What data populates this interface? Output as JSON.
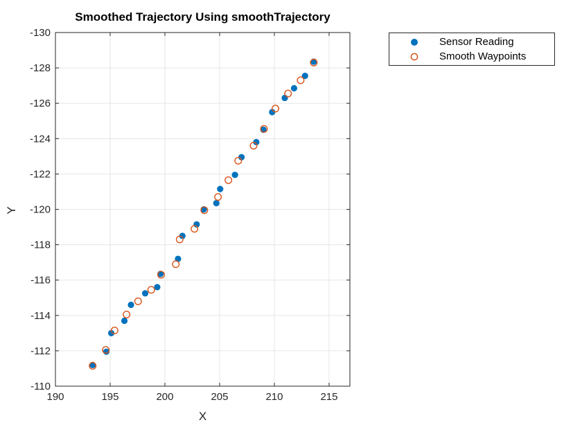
{
  "figure": {
    "background": "#ffffff"
  },
  "chart_data": {
    "type": "scatter",
    "title": "Smoothed Trajectory Using smoothTrajectory",
    "xlabel": "X",
    "ylabel": "Y",
    "xlim": [
      190,
      216.9
    ],
    "ylim": [
      -130,
      -110
    ],
    "y_axis_reversed": true,
    "grid": true,
    "grid_color": "#e6e6e6",
    "axis_color": "#262626",
    "tick_font_size": 15,
    "x_ticks": [
      190,
      195,
      200,
      205,
      210,
      215
    ],
    "x_tick_labels": [
      "190",
      "195",
      "200",
      "205",
      "210",
      "215"
    ],
    "y_ticks": [
      -130,
      -128,
      -126,
      -124,
      -122,
      -120,
      -118,
      -116,
      -114,
      -112,
      -110
    ],
    "y_tick_labels": [
      "-130",
      "-128",
      "-126",
      "-124",
      "-122",
      "-120",
      "-118",
      "-116",
      "-114",
      "-112",
      "-110"
    ],
    "legend_position": "outside-top-right",
    "series": [
      {
        "name": "Sensor Reading",
        "marker": "filled-circle",
        "color": "#0072BD",
        "points": [
          [
            193.4,
            -111.2
          ],
          [
            194.65,
            -111.95
          ],
          [
            195.1,
            -113.0
          ],
          [
            196.3,
            -113.7
          ],
          [
            196.9,
            -114.6
          ],
          [
            198.2,
            -115.25
          ],
          [
            199.3,
            -115.6
          ],
          [
            199.6,
            -116.35
          ],
          [
            201.2,
            -117.2
          ],
          [
            201.6,
            -118.5
          ],
          [
            202.9,
            -119.15
          ],
          [
            203.55,
            -120.0
          ],
          [
            204.7,
            -120.35
          ],
          [
            205.05,
            -121.15
          ],
          [
            206.4,
            -121.95
          ],
          [
            207.0,
            -122.95
          ],
          [
            208.35,
            -123.8
          ],
          [
            209.0,
            -124.5
          ],
          [
            209.8,
            -125.5
          ],
          [
            210.95,
            -126.3
          ],
          [
            211.8,
            -126.85
          ],
          [
            212.8,
            -127.55
          ],
          [
            213.6,
            -128.35
          ]
        ]
      },
      {
        "name": "Smooth Waypoints",
        "marker": "open-circle",
        "color": "#D95319",
        "points": [
          [
            193.4,
            -111.15
          ],
          [
            194.6,
            -112.05
          ],
          [
            195.4,
            -113.15
          ],
          [
            196.5,
            -114.05
          ],
          [
            197.55,
            -114.8
          ],
          [
            198.75,
            -115.45
          ],
          [
            199.65,
            -116.3
          ],
          [
            201.0,
            -116.9
          ],
          [
            201.35,
            -118.3
          ],
          [
            202.7,
            -118.9
          ],
          [
            203.6,
            -119.95
          ],
          [
            204.85,
            -120.7
          ],
          [
            205.8,
            -121.65
          ],
          [
            206.7,
            -122.75
          ],
          [
            208.1,
            -123.6
          ],
          [
            209.05,
            -124.55
          ],
          [
            210.1,
            -125.7
          ],
          [
            211.25,
            -126.55
          ],
          [
            212.4,
            -127.3
          ],
          [
            213.6,
            -128.3
          ]
        ]
      }
    ]
  }
}
